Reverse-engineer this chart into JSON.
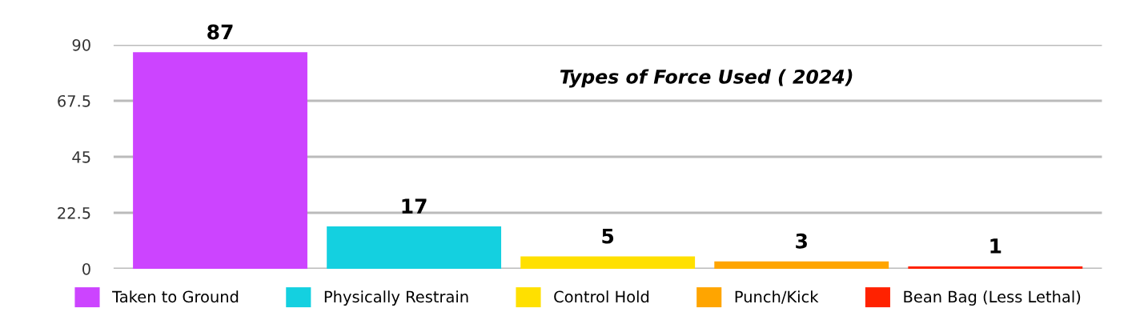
{
  "chart_data": {
    "type": "bar",
    "title": "Types of Force Used ( 2024)",
    "categories": [
      null,
      null,
      null,
      null,
      null
    ],
    "series": [
      {
        "name": "Taken to Ground",
        "color": "#cc44ff",
        "values": [
          87,
          null,
          null,
          null,
          null
        ]
      },
      {
        "name": "Physically Restrain",
        "color": "#14d0e0",
        "values": [
          null,
          17,
          null,
          null,
          null
        ]
      },
      {
        "name": "Control Hold",
        "color": "#ffe000",
        "values": [
          null,
          null,
          5,
          null,
          null
        ]
      },
      {
        "name": "Punch/Kick",
        "color": "#ffa500",
        "values": [
          null,
          null,
          null,
          3,
          null
        ]
      },
      {
        "name": "Bean Bag (Less Lethal)",
        "color": "#ff2200",
        "values": [
          null,
          null,
          null,
          null,
          1
        ]
      }
    ],
    "ylim": [
      0,
      90
    ],
    "yticks": [
      0,
      22.5,
      45,
      67.5,
      90
    ],
    "grid": "y",
    "data_labels": true,
    "legend": "bottom"
  }
}
